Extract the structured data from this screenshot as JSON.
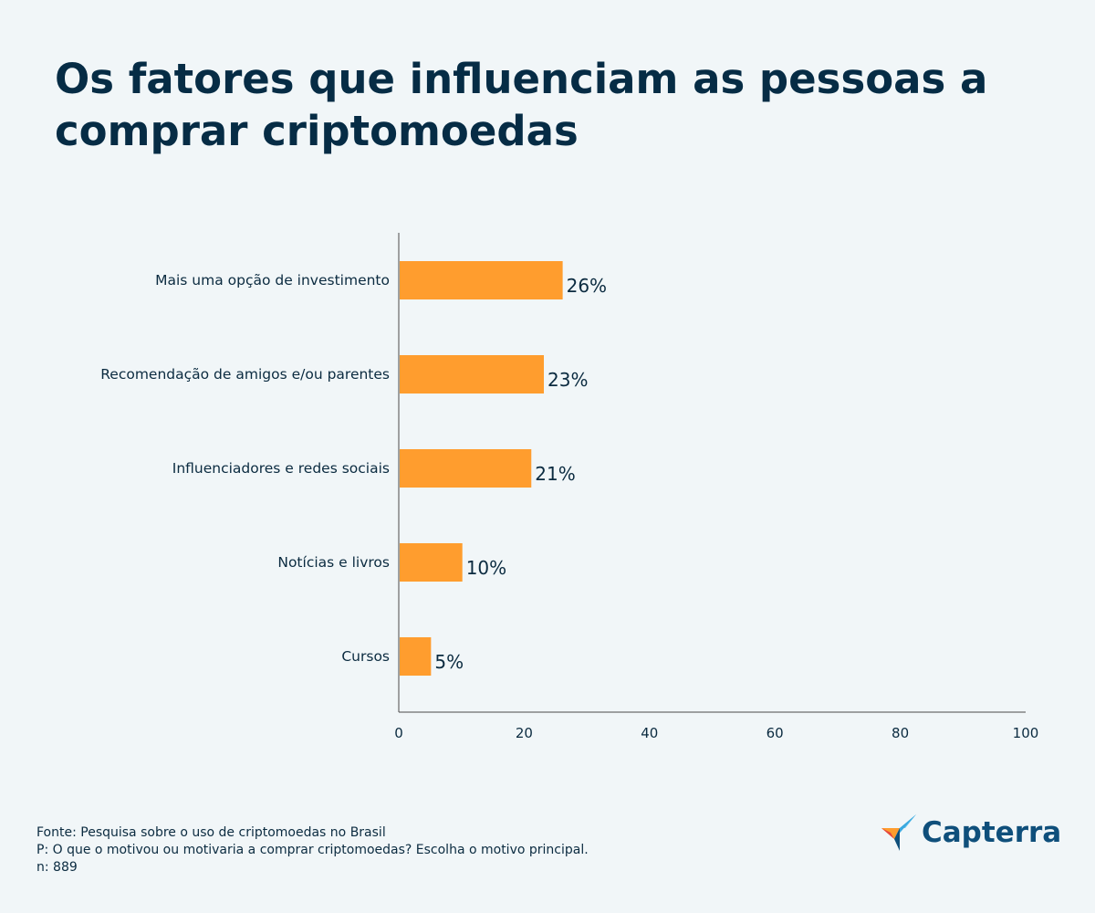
{
  "title": "Os fatores que influenciam as pessoas a comprar criptomoedas",
  "chart_data": {
    "type": "bar",
    "orientation": "horizontal",
    "categories": [
      "Mais uma opção de investimento",
      "Recomendação de amigos e/ou parentes",
      "Influenciadores e redes sociais",
      "Notícias e livros",
      "Cursos"
    ],
    "values": [
      26,
      23,
      21,
      10,
      5
    ],
    "value_labels": [
      "26%",
      "23%",
      "21%",
      "10%",
      "5%"
    ],
    "xlim": [
      0,
      100
    ],
    "xticks": [
      "0",
      "20",
      "40",
      "60",
      "80",
      "100"
    ],
    "bar_color": "#ff9d2e",
    "grid": false
  },
  "footer": {
    "source": "Fonte: Pesquisa sobre o uso de criptomoedas no Brasil",
    "question": "P: O que o motivou ou motivaria a comprar criptomoedas? Escolha o motivo principal.",
    "sample": "n: 889"
  },
  "logo": {
    "text": "Capterra",
    "colors": [
      "#ff9d2e",
      "#e5473f",
      "#68c5ed",
      "#0f4f7b"
    ]
  }
}
